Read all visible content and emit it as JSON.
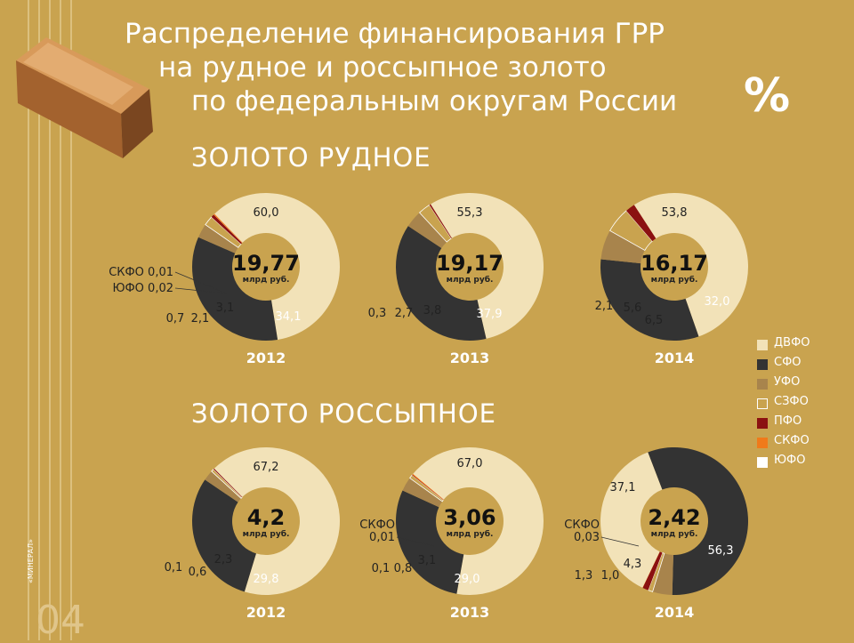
{
  "title_lines": [
    "Распределение финансирования ГРР",
    "на рудное и россыпное золото",
    "по федеральным округам России"
  ],
  "percent_sign": "%",
  "page_number": "04",
  "brand_text": "«МИНЕРАЛ»",
  "sections": {
    "ore": "ЗОЛОТО РУДНОЕ",
    "placer": "ЗОЛОТО РОССЫПНОЕ"
  },
  "legend": [
    {
      "label": "ДВФО",
      "color": "#f2e2b8",
      "border": "#f2e2b8"
    },
    {
      "label": "СФО",
      "color": "#333333",
      "border": "#333333"
    },
    {
      "label": "УФО",
      "color": "#a8844c",
      "border": "#a8844c"
    },
    {
      "label": "СЗФО",
      "color": "#c9a34f",
      "border": "#ffffff"
    },
    {
      "label": "ПФО",
      "color": "#8b1111",
      "border": "#8b1111"
    },
    {
      "label": "СКФО",
      "color": "#f07a1a",
      "border": "#f07a1a"
    },
    {
      "label": "ЮФО",
      "color": "#ffffff",
      "border": "#ffffff"
    }
  ],
  "chart_data": [
    {
      "type": "pie",
      "section": "ЗОЛОТО РУДНОЕ",
      "year": "2012",
      "total": "19,77",
      "unit": "млрд руб.",
      "slices": [
        {
          "name": "ДВФО",
          "value": 60.0,
          "label": "60,0"
        },
        {
          "name": "СФО",
          "value": 34.1,
          "label": "34,1"
        },
        {
          "name": "УФО",
          "value": 3.1,
          "label": "3,1"
        },
        {
          "name": "СЗФО",
          "value": 2.1,
          "label": "2,1"
        },
        {
          "name": "ПФО",
          "value": 0.7,
          "label": "0,7"
        },
        {
          "name": "ЮФО",
          "value": 0.02,
          "label": "ЮФО 0,02"
        },
        {
          "name": "СКФО",
          "value": 0.01,
          "label": "СКФО 0,01"
        }
      ]
    },
    {
      "type": "pie",
      "section": "ЗОЛОТО РУДНОЕ",
      "year": "2013",
      "total": "19,17",
      "unit": "млрд руб.",
      "slices": [
        {
          "name": "ДВФО",
          "value": 55.3,
          "label": "55,3"
        },
        {
          "name": "СФО",
          "value": 37.9,
          "label": "37,9"
        },
        {
          "name": "УФО",
          "value": 3.8,
          "label": "3,8"
        },
        {
          "name": "СЗФО",
          "value": 2.7,
          "label": "2,7"
        },
        {
          "name": "ПФО",
          "value": 0.3,
          "label": "0,3"
        }
      ]
    },
    {
      "type": "pie",
      "section": "ЗОЛОТО РУДНОЕ",
      "year": "2014",
      "total": "16,17",
      "unit": "млрд руб.",
      "slices": [
        {
          "name": "ДВФО",
          "value": 53.8,
          "label": "53,8"
        },
        {
          "name": "СФО",
          "value": 32.0,
          "label": "32,0"
        },
        {
          "name": "УФО",
          "value": 6.5,
          "label": "6,5"
        },
        {
          "name": "СЗФО",
          "value": 5.6,
          "label": "5,6"
        },
        {
          "name": "ПФО",
          "value": 2.1,
          "label": "2,1"
        }
      ]
    },
    {
      "type": "pie",
      "section": "ЗОЛОТО РОССЫПНОЕ",
      "year": "2012",
      "total": "4,2",
      "unit": "млрд руб.",
      "slices": [
        {
          "name": "ДВФО",
          "value": 67.2,
          "label": "67,2"
        },
        {
          "name": "СФО",
          "value": 29.8,
          "label": "29,8"
        },
        {
          "name": "УФО",
          "value": 2.3,
          "label": "2,3"
        },
        {
          "name": "СЗФО",
          "value": 0.6,
          "label": "0,6"
        },
        {
          "name": "ПФО",
          "value": 0.1,
          "label": "0,1"
        }
      ]
    },
    {
      "type": "pie",
      "section": "ЗОЛОТО РОССЫПНОЕ",
      "year": "2013",
      "total": "3,06",
      "unit": "млрд руб.",
      "slices": [
        {
          "name": "ДВФО",
          "value": 67.0,
          "label": "67,0"
        },
        {
          "name": "СФО",
          "value": 29.0,
          "label": "29,0"
        },
        {
          "name": "УФО",
          "value": 3.1,
          "label": "3,1"
        },
        {
          "name": "СЗФО",
          "value": 0.8,
          "label": "0,8"
        },
        {
          "name": "ПФО",
          "value": 0.1,
          "label": "0,1"
        },
        {
          "name": "СКФО",
          "value": 0.01,
          "label": "СКФО 0,01"
        }
      ]
    },
    {
      "type": "pie",
      "section": "ЗОЛОТО РОССЫПНОЕ",
      "year": "2014",
      "total": "2,42",
      "unit": "млрд руб.",
      "slices": [
        {
          "name": "ДВФО",
          "value": 37.1,
          "label": "37,1"
        },
        {
          "name": "СФО",
          "value": 56.3,
          "label": "56,3"
        },
        {
          "name": "УФО",
          "value": 4.3,
          "label": "4,3"
        },
        {
          "name": "СЗФО",
          "value": 1.0,
          "label": "1,0"
        },
        {
          "name": "ПФО",
          "value": 1.3,
          "label": "1,3"
        },
        {
          "name": "СКФО",
          "value": 0.03,
          "label": "СКФО 0,03"
        }
      ]
    }
  ]
}
